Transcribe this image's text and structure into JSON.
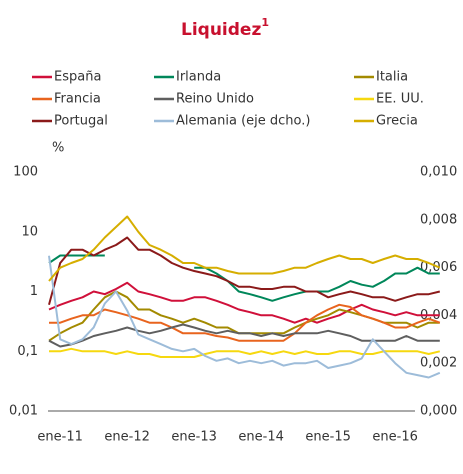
{
  "chart_data": {
    "type": "line",
    "title": "Liquidez",
    "title_note": "1",
    "y_label": "%",
    "log_scale": true,
    "categories": [
      null,
      "ene-11",
      null,
      null,
      null,
      null,
      null,
      "ene-12",
      null,
      null,
      null,
      null,
      null,
      "ene-13",
      null,
      null,
      null,
      null,
      null,
      "ene-14",
      null,
      null,
      null,
      null,
      null,
      "ene-15",
      null,
      null,
      null,
      null,
      null,
      "ene-16",
      null,
      null,
      null,
      null
    ],
    "ylim": [
      0.01,
      100
    ],
    "yticks": [
      100,
      10,
      1,
      {
        "value": 0.1,
        "label": "0,1"
      },
      {
        "value": 0.01,
        "label": "0,01"
      }
    ],
    "y2lim": [
      0,
      0.01
    ],
    "y2ticks": [
      {
        "value": 0.01,
        "label": "0,010"
      },
      {
        "value": 0.008,
        "label": "0,008"
      },
      {
        "value": 0.006,
        "label": "0,006"
      },
      {
        "value": 0.004,
        "label": "0,004"
      },
      {
        "value": 0.002,
        "label": "0,002"
      },
      {
        "value": 0,
        "label": "0,000"
      }
    ],
    "series": [
      {
        "name": "España",
        "color": "#d0103a",
        "values": [
          0.5,
          0.6,
          0.7,
          0.8,
          1.0,
          0.9,
          1.1,
          1.4,
          1.0,
          0.9,
          0.8,
          0.7,
          0.7,
          0.8,
          0.8,
          0.7,
          0.6,
          0.5,
          0.45,
          0.4,
          0.4,
          0.35,
          0.3,
          0.35,
          0.3,
          0.35,
          0.4,
          0.5,
          0.6,
          0.5,
          0.45,
          0.4,
          0.45,
          0.4,
          0.4,
          0.4
        ]
      },
      {
        "name": "Irlanda",
        "color": "#00875a",
        "values": [
          3,
          4,
          4,
          4,
          4,
          4,
          null,
          null,
          null,
          null,
          null,
          null,
          null,
          2.5,
          2.5,
          2,
          1.5,
          1,
          0.9,
          0.8,
          0.7,
          0.8,
          0.9,
          1,
          1,
          1,
          1.2,
          1.5,
          1.3,
          1.2,
          1.5,
          2,
          2,
          2.5,
          2,
          2
        ]
      },
      {
        "name": "Italia",
        "color": "#a38a00",
        "values": [
          0.15,
          0.2,
          0.25,
          0.3,
          0.5,
          0.8,
          1.0,
          0.8,
          0.5,
          0.5,
          0.4,
          0.35,
          0.3,
          0.35,
          0.3,
          0.25,
          0.25,
          0.2,
          0.2,
          0.2,
          0.2,
          0.2,
          0.25,
          0.3,
          0.35,
          0.4,
          0.5,
          0.45,
          0.4,
          0.35,
          0.3,
          0.3,
          0.3,
          0.25,
          0.3,
          0.3
        ]
      },
      {
        "name": "Francia",
        "color": "#e8641e",
        "values": [
          0.3,
          0.3,
          0.35,
          0.4,
          0.4,
          0.5,
          0.45,
          0.4,
          0.35,
          0.3,
          0.3,
          0.25,
          0.2,
          0.2,
          0.2,
          0.18,
          0.17,
          0.15,
          0.15,
          0.15,
          0.15,
          0.15,
          0.2,
          0.3,
          0.4,
          0.5,
          0.6,
          0.55,
          0.4,
          0.35,
          0.3,
          0.25,
          0.25,
          0.3,
          0.35,
          0.3
        ]
      },
      {
        "name": "Reino Unido",
        "color": "#5f5f5f",
        "values": [
          0.15,
          0.12,
          0.13,
          0.15,
          0.18,
          0.2,
          0.22,
          0.25,
          0.22,
          0.2,
          0.22,
          0.25,
          0.28,
          0.25,
          0.22,
          0.2,
          0.22,
          0.2,
          0.2,
          0.18,
          0.2,
          0.18,
          0.2,
          0.2,
          0.2,
          0.22,
          0.2,
          0.18,
          0.15,
          0.15,
          0.15,
          0.15,
          0.18,
          0.15,
          0.15,
          0.15
        ]
      },
      {
        "name": "EE. UU.",
        "color": "#f6d80f",
        "values": [
          0.1,
          0.1,
          0.11,
          0.1,
          0.1,
          0.1,
          0.09,
          0.1,
          0.09,
          0.09,
          0.08,
          0.08,
          0.08,
          0.08,
          0.09,
          0.1,
          0.1,
          0.1,
          0.09,
          0.1,
          0.09,
          0.1,
          0.09,
          0.1,
          0.09,
          0.09,
          0.1,
          0.1,
          0.09,
          0.09,
          0.1,
          0.1,
          0.1,
          0.1,
          0.09,
          0.1
        ]
      },
      {
        "name": "Portugal",
        "color": "#8b1a1a",
        "values": [
          0.6,
          3,
          5,
          5,
          4,
          5,
          6,
          8,
          5,
          5,
          4,
          3,
          2.5,
          2.2,
          2,
          1.8,
          1.5,
          1.2,
          1.2,
          1.1,
          1.1,
          1.2,
          1.2,
          1,
          1,
          0.8,
          0.9,
          1,
          0.9,
          0.8,
          0.8,
          0.7,
          0.8,
          0.9,
          0.9,
          1
        ]
      },
      {
        "name": "Alemania (eje dcho.)",
        "color": "#9dbcd9",
        "axis": "y2",
        "values": [
          0.0065,
          0.003,
          0.0028,
          0.003,
          0.0035,
          0.0045,
          0.005,
          0.0042,
          0.0032,
          0.003,
          0.0028,
          0.0026,
          0.0025,
          0.0026,
          0.0023,
          0.0021,
          0.0022,
          0.002,
          0.0021,
          0.002,
          0.0021,
          0.0019,
          0.002,
          0.002,
          0.0021,
          0.0018,
          0.0019,
          0.002,
          0.0022,
          0.003,
          0.0025,
          0.002,
          0.0016,
          0.0015,
          0.0014,
          0.0016
        ]
      },
      {
        "name": "Grecia",
        "color": "#d6ae00",
        "values": [
          1.5,
          2.5,
          3,
          3.5,
          5,
          8,
          12,
          18,
          10,
          6,
          5,
          4,
          3,
          3,
          2.5,
          2.5,
          2.2,
          2,
          2,
          2,
          2,
          2.2,
          2.5,
          2.5,
          3,
          3.5,
          4,
          3.5,
          3.5,
          3,
          3.5,
          4,
          3.5,
          3.5,
          3,
          2.5
        ]
      }
    ]
  }
}
